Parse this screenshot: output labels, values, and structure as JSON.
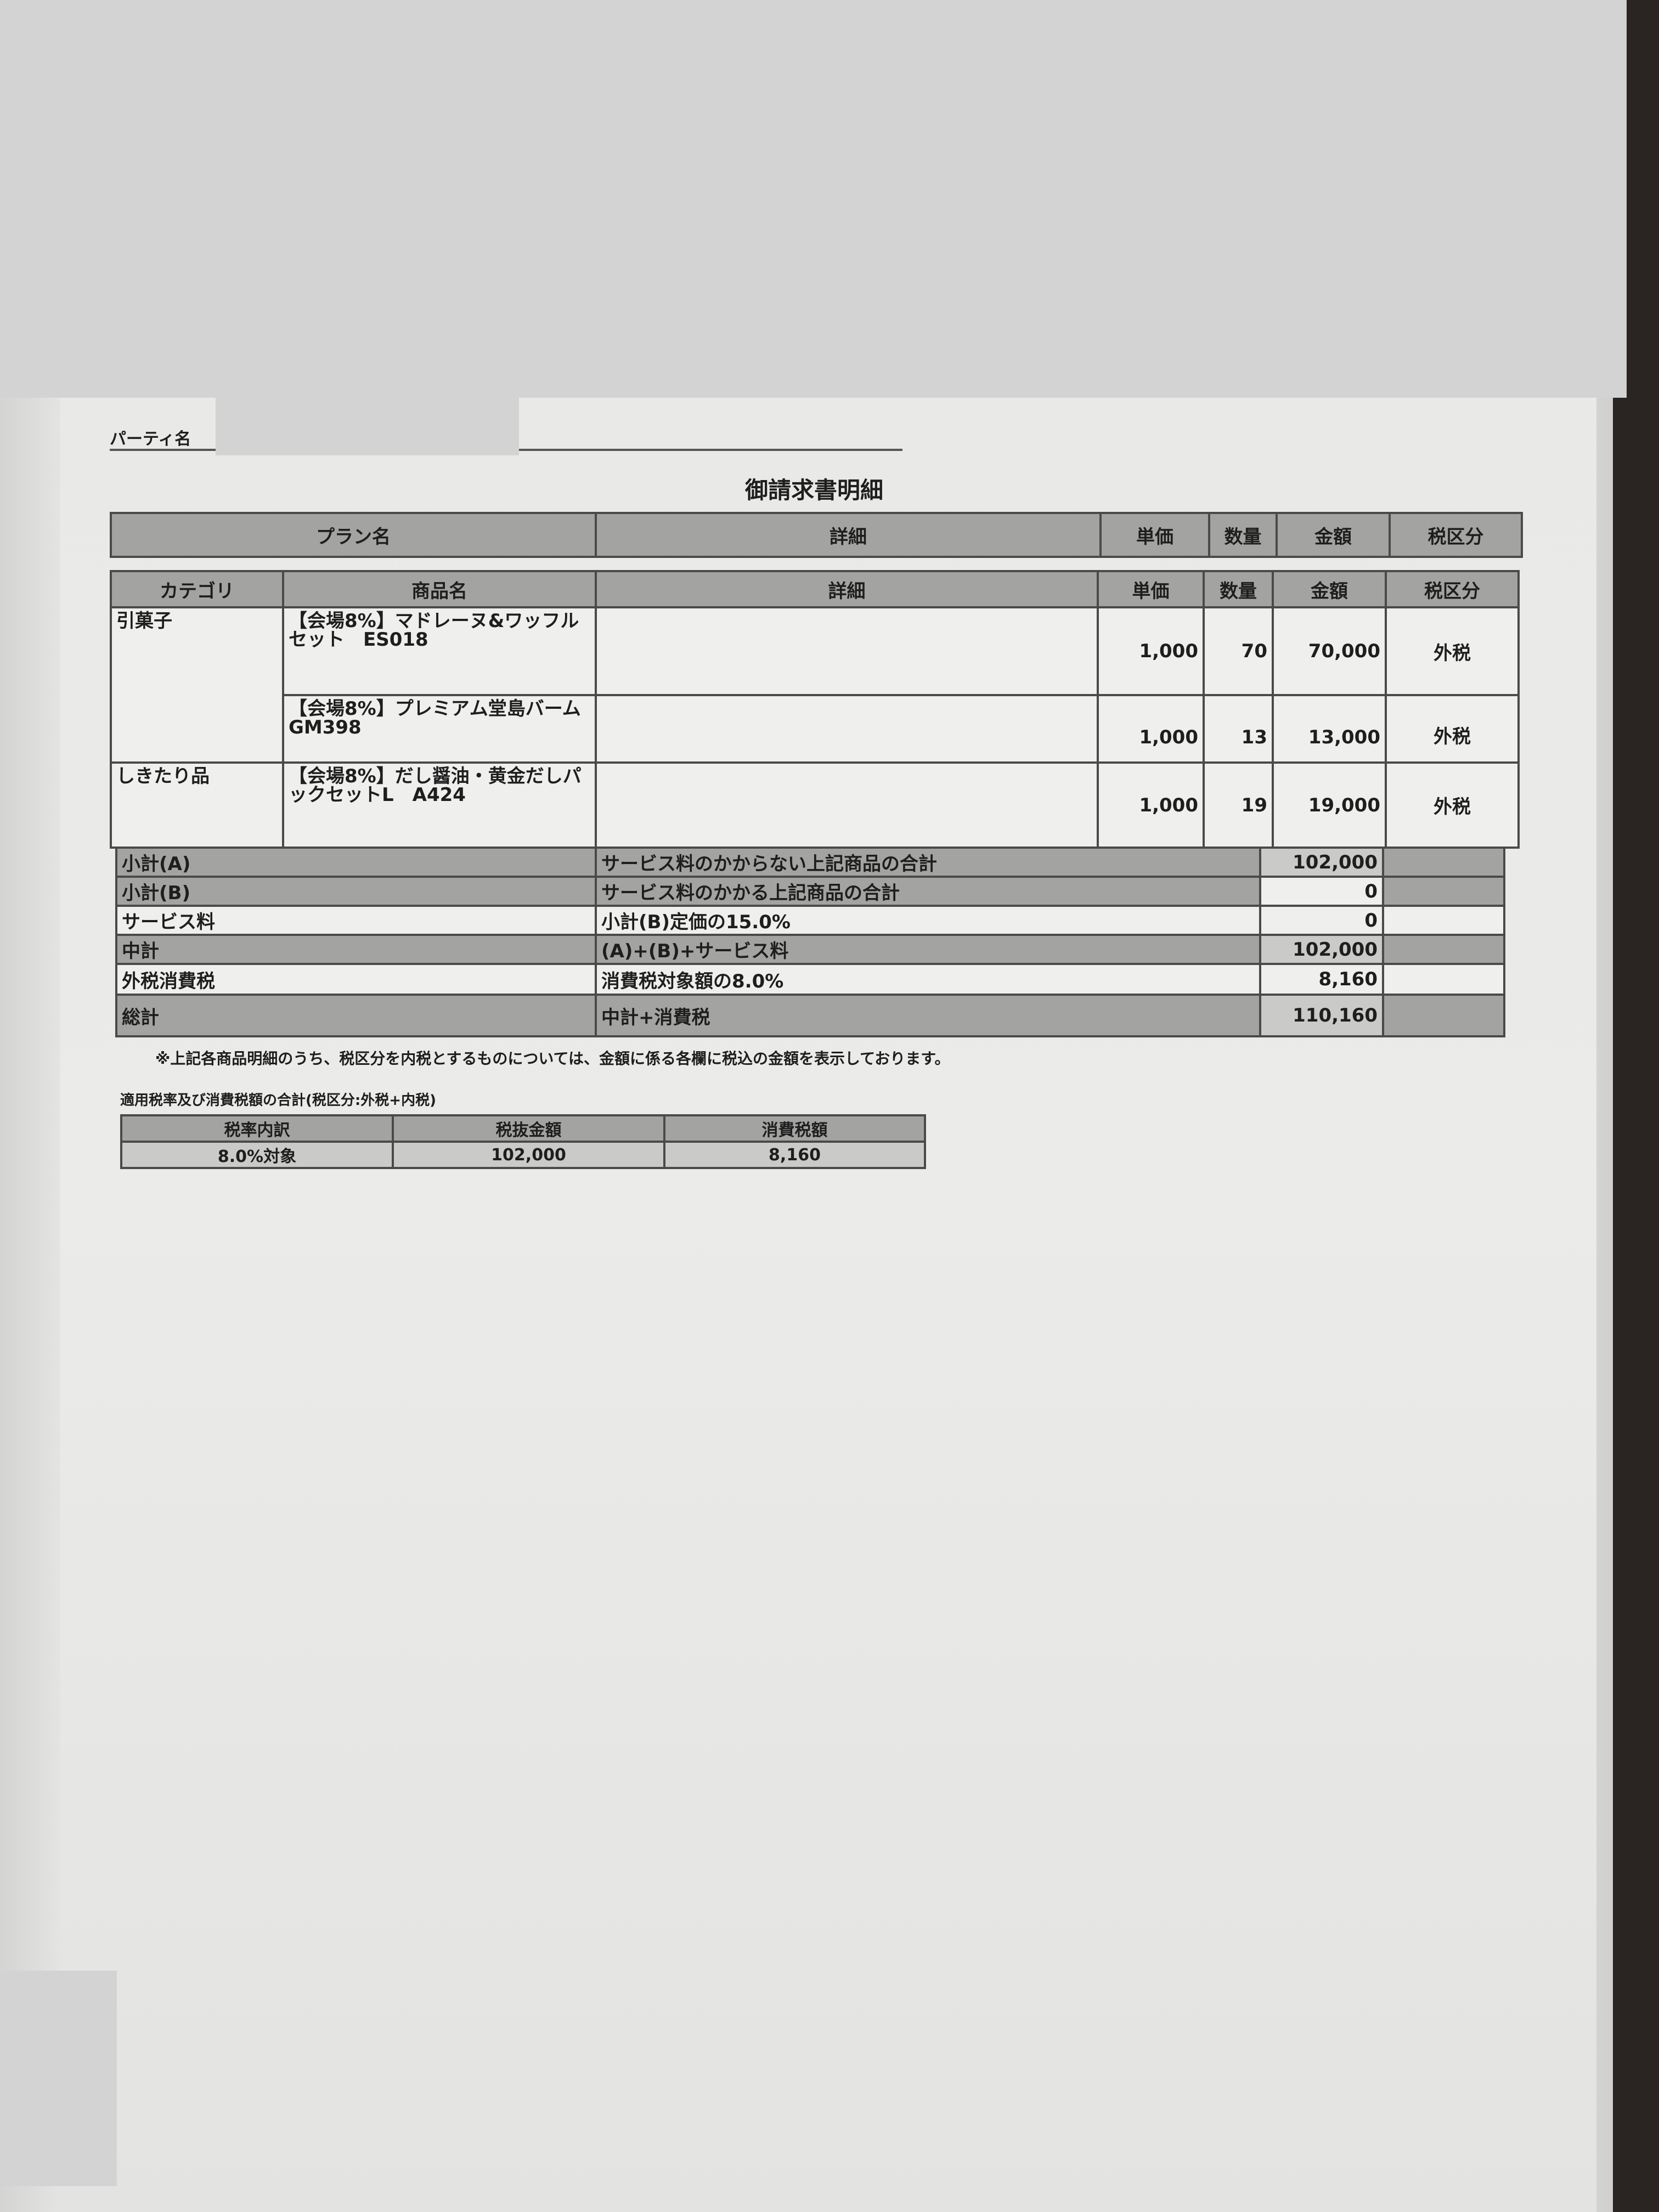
{
  "party": {
    "label": "パーティ名"
  },
  "title": "御請求書明細",
  "plan_table": {
    "headers": [
      "プラン名",
      "詳細",
      "単価",
      "数量",
      "金額",
      "税区分"
    ]
  },
  "items_table": {
    "headers": [
      "カテゴリ",
      "商品名",
      "詳細",
      "単価",
      "数量",
      "金額",
      "税区分"
    ],
    "rows": [
      {
        "category": "引菓子",
        "name": "【会場8%】マドレーヌ&ワッフルセット　ES018",
        "detail": "",
        "unit_price": "1,000",
        "qty": "70",
        "amount": "70,000",
        "tax": "外税"
      },
      {
        "category": "",
        "name": "【会場8%】プレミアム堂島バーム GM398",
        "detail": "",
        "unit_price": "1,000",
        "qty": "13",
        "amount": "13,000",
        "tax": "外税"
      },
      {
        "category": "しきたり品",
        "name": "【会場8%】だし醤油・黄金だしパックセットL　A424",
        "detail": "",
        "unit_price": "1,000",
        "qty": "19",
        "amount": "19,000",
        "tax": "外税"
      }
    ]
  },
  "summary": [
    {
      "label": "小計(A)",
      "desc": "サービス料のかからない上記商品の合計",
      "amount": "102,000"
    },
    {
      "label": "小計(B)",
      "desc": "サービス料のかかる上記商品の合計",
      "amount": "0"
    },
    {
      "label": "サービス料",
      "desc": "小計(B)定価の15.0%",
      "amount": "0"
    },
    {
      "label": "中計",
      "desc": "(A)+(B)+サービス料",
      "amount": "102,000"
    },
    {
      "label": "外税消費税",
      "desc": "消費税対象額の8.0%",
      "amount": "8,160"
    },
    {
      "label": "総計",
      "desc": "中計+消費税",
      "amount": "110,160"
    }
  ],
  "note": "※上記各商品明細のうち、税区分を内税とするものについては、金額に係る各欄に税込の金額を表示しております。",
  "tax_summary": {
    "title": "適用税率及び消費税額の合計(税区分:外税+内税)",
    "headers": [
      "税率内訳",
      "税抜金額",
      "消費税額"
    ],
    "row": [
      "8.0%対象",
      "102,000",
      "8,160"
    ]
  }
}
